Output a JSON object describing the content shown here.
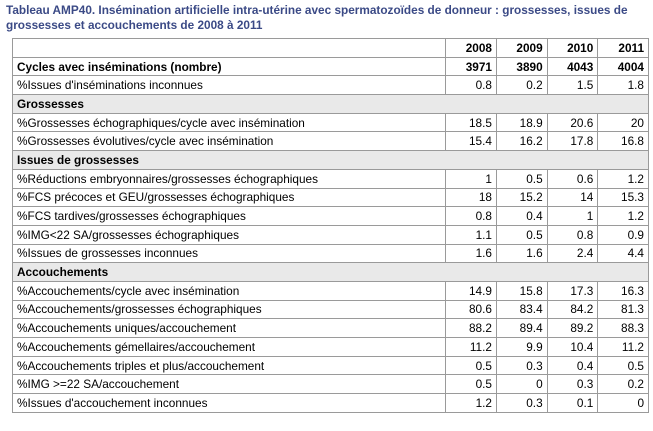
{
  "title": "Tableau AMP40. Insémination artificielle intra-utérine avec spermatozoïdes de donneur : grossesses, issues de grossesses et accouchements de 2008 à 2011",
  "years": [
    "2008",
    "2009",
    "2010",
    "2011"
  ],
  "rows": [
    {
      "type": "bold",
      "label": "Cycles avec inséminations (nombre)",
      "values": [
        "3971",
        "3890",
        "4043",
        "4004"
      ]
    },
    {
      "type": "data",
      "label": "%Issues d'inséminations inconnues",
      "values": [
        "0.8",
        "0.2",
        "1.5",
        "1.8"
      ]
    },
    {
      "type": "section",
      "label": "Grossesses"
    },
    {
      "type": "data",
      "label": "%Grossesses échographiques/cycle avec insémination",
      "values": [
        "18.5",
        "18.9",
        "20.6",
        "20"
      ]
    },
    {
      "type": "data",
      "label": "%Grossesses évolutives/cycle avec insémination",
      "values": [
        "15.4",
        "16.2",
        "17.8",
        "16.8"
      ]
    },
    {
      "type": "section",
      "label": "Issues de grossesses"
    },
    {
      "type": "data",
      "label": "%Réductions embryonnaires/grossesses échographiques",
      "values": [
        "1",
        "0.5",
        "0.6",
        "1.2"
      ]
    },
    {
      "type": "data",
      "label": "%FCS précoces et GEU/grossesses échographiques",
      "values": [
        "18",
        "15.2",
        "14",
        "15.3"
      ]
    },
    {
      "type": "data",
      "label": "%FCS tardives/grossesses échographiques",
      "values": [
        "0.8",
        "0.4",
        "1",
        "1.2"
      ]
    },
    {
      "type": "data",
      "label": "%IMG<22 SA/grossesses échographiques",
      "values": [
        "1.1",
        "0.5",
        "0.8",
        "0.9"
      ]
    },
    {
      "type": "data",
      "label": "%Issues de grossesses inconnues",
      "values": [
        "1.6",
        "1.6",
        "2.4",
        "4.4"
      ]
    },
    {
      "type": "section",
      "label": "Accouchements"
    },
    {
      "type": "data",
      "label": "%Accouchements/cycle avec insémination",
      "values": [
        "14.9",
        "15.8",
        "17.3",
        "16.3"
      ]
    },
    {
      "type": "data",
      "label": "%Accouchements/grossesses échographiques",
      "values": [
        "80.6",
        "83.4",
        "84.2",
        "81.3"
      ]
    },
    {
      "type": "data",
      "label": "%Accouchements uniques/accouchement",
      "values": [
        "88.2",
        "89.4",
        "89.2",
        "88.3"
      ]
    },
    {
      "type": "data",
      "label": "%Accouchements gémellaires/accouchement",
      "values": [
        "11.2",
        "9.9",
        "10.4",
        "11.2"
      ]
    },
    {
      "type": "data",
      "label": "%Accouchements triples et plus/accouchement",
      "values": [
        "0.5",
        "0.3",
        "0.4",
        "0.5"
      ]
    },
    {
      "type": "data",
      "label": "%IMG >=22 SA/accouchement",
      "values": [
        "0.5",
        "0",
        "0.3",
        "0.2"
      ]
    },
    {
      "type": "data",
      "label": "%Issues d'accouchement inconnues",
      "values": [
        "1.2",
        "0.3",
        "0.1",
        "0"
      ]
    }
  ]
}
